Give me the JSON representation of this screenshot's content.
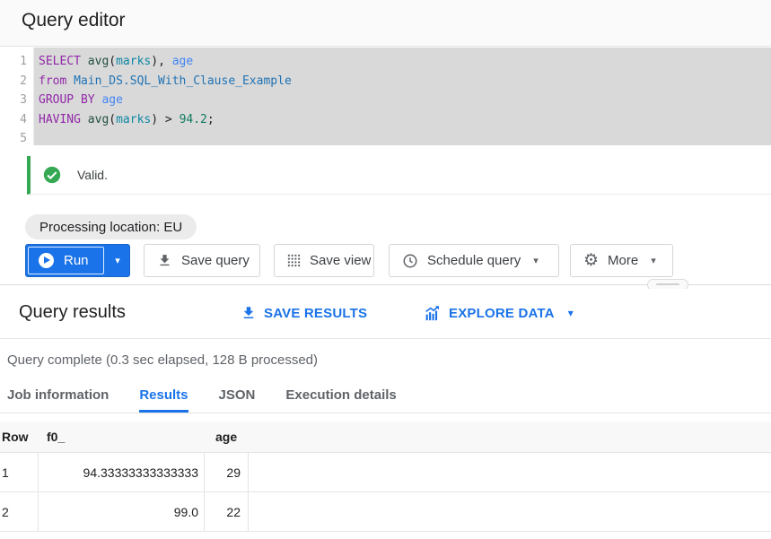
{
  "colors": {
    "accent_blue": "#1a73e8",
    "valid_green": "#34a853",
    "selection_gray": "#d9d9d9",
    "keyword_purple": "#9127a8",
    "identifier_teal": "#0b87a3",
    "tableref_blue": "#2173b4",
    "column_blue": "#4285f4",
    "number_green": "#0f7b5f"
  },
  "header": {
    "title": "Query editor"
  },
  "editor": {
    "line_numbers": [
      "1",
      "2",
      "3",
      "4",
      "5"
    ],
    "lines": [
      {
        "tokens": [
          [
            "SELECT",
            "kw"
          ],
          [
            " ",
            "pl"
          ],
          [
            "avg",
            "fn"
          ],
          [
            "(",
            "pl"
          ],
          [
            "marks",
            "id"
          ],
          [
            "),",
            "pl"
          ],
          [
            " ",
            "pl"
          ],
          [
            "age",
            "col"
          ]
        ]
      },
      {
        "tokens": [
          [
            "from",
            "kw"
          ],
          [
            " ",
            "pl"
          ],
          [
            "Main_DS.SQL_With_Clause_Example",
            "tbl"
          ]
        ]
      },
      {
        "tokens": [
          [
            "GROUP BY",
            "kw"
          ],
          [
            " ",
            "pl"
          ],
          [
            "age",
            "col"
          ]
        ]
      },
      {
        "tokens": [
          [
            "HAVING",
            "kw"
          ],
          [
            " ",
            "pl"
          ],
          [
            "avg",
            "fn"
          ],
          [
            "(",
            "pl"
          ],
          [
            "marks",
            "id"
          ],
          [
            ")",
            "pl"
          ],
          [
            " > ",
            "pl"
          ],
          [
            "94.2",
            "num"
          ],
          [
            ";",
            "pl"
          ]
        ]
      },
      {
        "tokens": []
      }
    ]
  },
  "validation": {
    "message": "Valid.",
    "icon": "check-circle-icon"
  },
  "processing_chip": {
    "label": "Processing location: EU"
  },
  "toolbar": {
    "run": {
      "label": "Run",
      "icon": "play-circle-icon",
      "has_dropdown": true
    },
    "save_query": {
      "label": "Save query",
      "icon": "download-icon"
    },
    "save_view": {
      "label": "Save view",
      "icon": "grid-dots-icon"
    },
    "schedule_query": {
      "label": "Schedule query",
      "icon": "clock-icon",
      "has_dropdown": true
    },
    "more": {
      "label": "More",
      "icon": "gear-icon",
      "has_dropdown": true
    }
  },
  "results": {
    "title": "Query results",
    "actions": {
      "save_results": {
        "label": "SAVE RESULTS",
        "icon": "download-icon"
      },
      "explore_data": {
        "label": "EXPLORE DATA",
        "icon": "bar-chart-icon",
        "has_dropdown": true
      }
    },
    "status": "Query complete (0.3 sec elapsed, 128 B processed)",
    "tabs": [
      {
        "label": "Job information",
        "active": false
      },
      {
        "label": "Results",
        "active": true
      },
      {
        "label": "JSON",
        "active": false
      },
      {
        "label": "Execution details",
        "active": false
      }
    ],
    "table": {
      "headers": [
        "Row",
        "f0_",
        "age"
      ],
      "rows": [
        {
          "row": "1",
          "f0_": "94.33333333333333",
          "age": "29"
        },
        {
          "row": "2",
          "f0_": "99.0",
          "age": "22"
        }
      ]
    }
  }
}
